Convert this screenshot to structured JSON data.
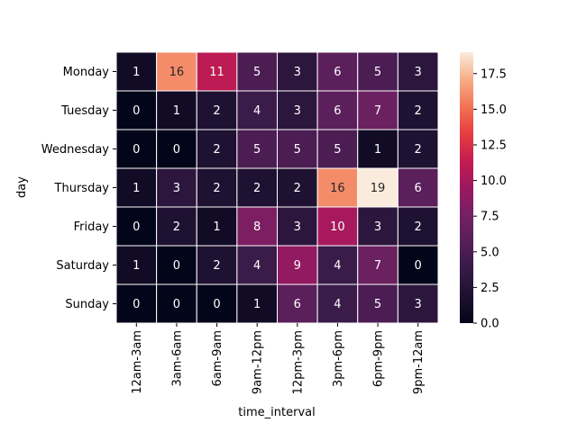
{
  "chart_data": {
    "type": "heatmap",
    "title": "",
    "xlabel": "time_interval",
    "ylabel": "day",
    "x_categories": [
      "12am-3am",
      "3am-6am",
      "6am-9am",
      "9am-12pm",
      "12pm-3pm",
      "3pm-6pm",
      "6pm-9pm",
      "9pm-12am"
    ],
    "y_categories": [
      "Monday",
      "Tuesday",
      "Wednesday",
      "Thursday",
      "Friday",
      "Saturday",
      "Sunday"
    ],
    "values": [
      [
        1,
        16,
        11,
        5,
        3,
        6,
        5,
        3
      ],
      [
        0,
        1,
        2,
        4,
        3,
        6,
        7,
        2
      ],
      [
        0,
        0,
        2,
        5,
        5,
        5,
        1,
        2
      ],
      [
        1,
        3,
        2,
        2,
        2,
        16,
        19,
        6
      ],
      [
        0,
        2,
        1,
        8,
        3,
        10,
        3,
        2
      ],
      [
        1,
        0,
        2,
        4,
        9,
        4,
        7,
        0
      ],
      [
        0,
        0,
        0,
        1,
        6,
        4,
        5,
        3
      ]
    ],
    "colorbar": {
      "colormap": "rocket",
      "range": [
        0,
        19
      ],
      "ticks": [
        0.0,
        2.5,
        5.0,
        7.5,
        10.0,
        12.5,
        15.0,
        17.5
      ],
      "tick_labels": [
        "0.0",
        "2.5",
        "5.0",
        "7.5",
        "10.0",
        "12.5",
        "15.0",
        "17.5"
      ]
    },
    "annotations": true,
    "cell_separator": "white lines"
  }
}
